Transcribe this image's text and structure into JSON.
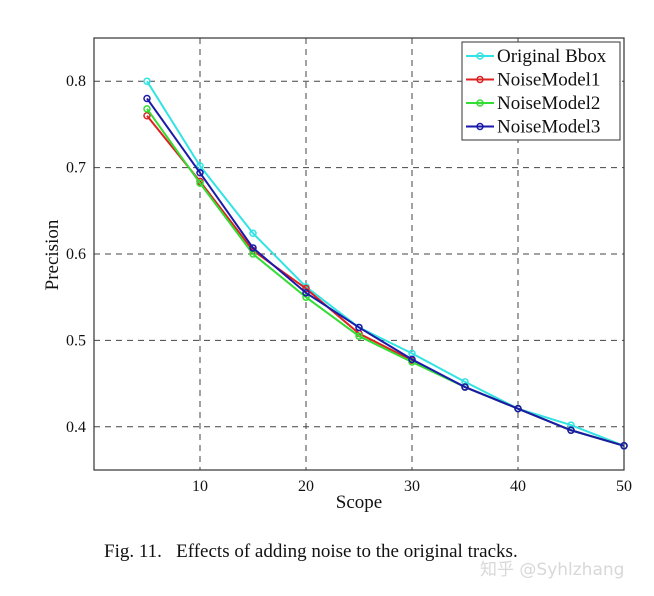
{
  "chart_data": {
    "type": "line",
    "xlabel": "Scope",
    "ylabel": "Precision",
    "xlim": [
      0,
      50
    ],
    "ylim": [
      0.35,
      0.85
    ],
    "xticks": [
      10,
      20,
      30,
      40,
      50
    ],
    "yticks": [
      0.4,
      0.5,
      0.6,
      0.7,
      0.8
    ],
    "xtick_labels": [
      "10",
      "20",
      "30",
      "40",
      "50"
    ],
    "ytick_labels": [
      "0.4",
      "0.5",
      "0.6",
      "0.7",
      "0.8"
    ],
    "grid": true,
    "legend_position": "top-right",
    "x": [
      5,
      10,
      15,
      20,
      25,
      30,
      35,
      40,
      45,
      50
    ],
    "series": [
      {
        "name": "Original Bbox",
        "color": "#33e3e3",
        "values": [
          0.8,
          0.702,
          0.624,
          0.562,
          0.515,
          0.485,
          0.452,
          0.421,
          0.402,
          0.378
        ]
      },
      {
        "name": "NoiseModel1",
        "color": "#dd2222",
        "values": [
          0.76,
          0.684,
          0.604,
          0.56,
          0.508,
          0.477,
          0.446,
          0.421,
          0.396,
          0.378
        ]
      },
      {
        "name": "NoiseModel2",
        "color": "#33dd33",
        "values": [
          0.768,
          0.682,
          0.6,
          0.55,
          0.505,
          0.475,
          0.446,
          0.421,
          0.396,
          0.378
        ]
      },
      {
        "name": "NoiseModel3",
        "color": "#1a1aaa",
        "values": [
          0.78,
          0.694,
          0.607,
          0.555,
          0.515,
          0.478,
          0.446,
          0.421,
          0.396,
          0.378
        ]
      }
    ]
  },
  "caption": "Fig. 11.   Effects of adding noise to the original tracks.",
  "watermark": "知乎 @Syhlzhang"
}
